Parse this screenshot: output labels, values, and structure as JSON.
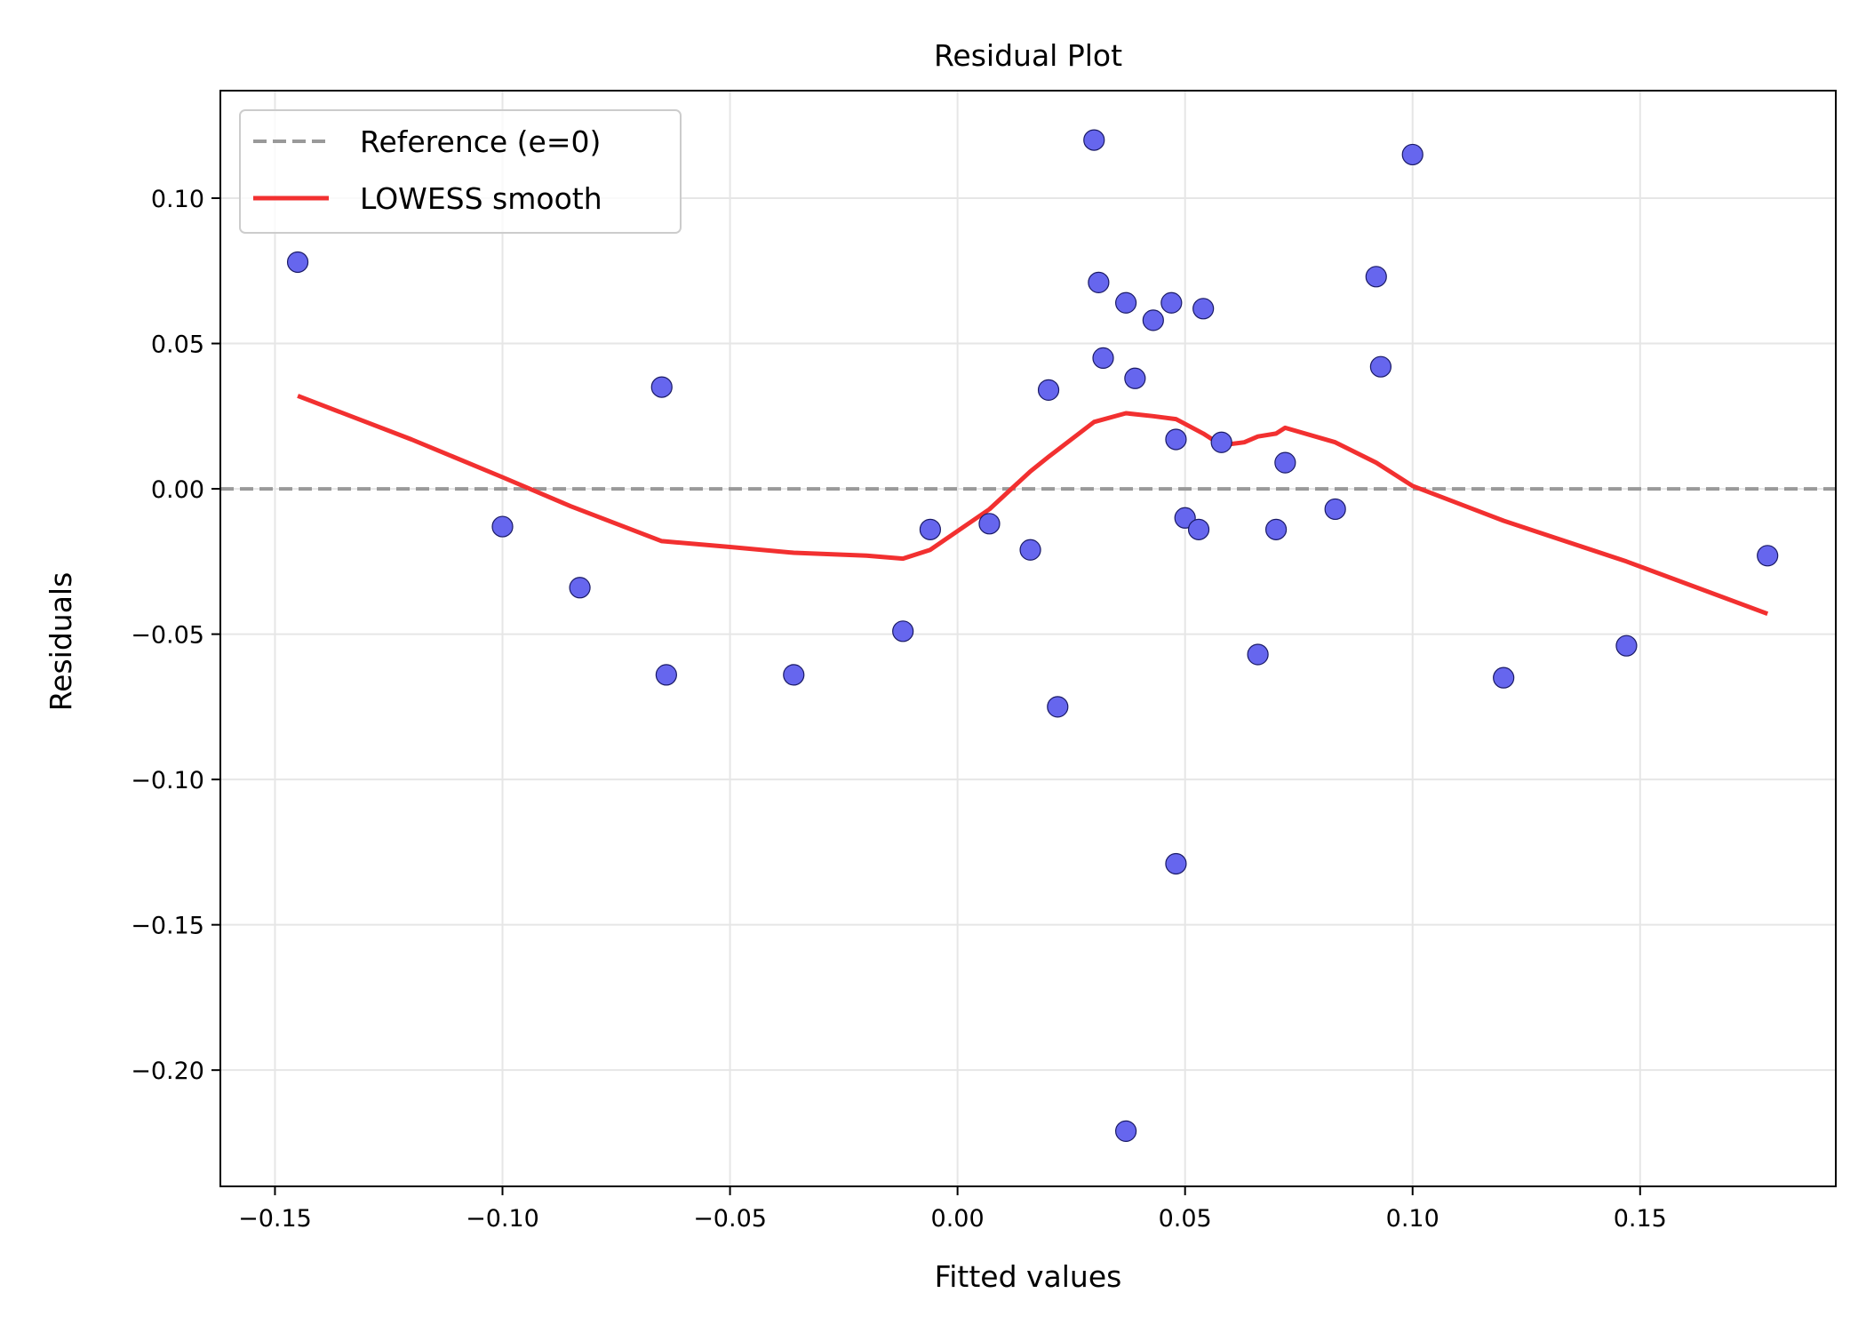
{
  "chart_data": {
    "type": "scatter",
    "title": "Residual Plot",
    "xlabel": "Fitted values",
    "ylabel": "Residuals",
    "xlim": [
      -0.162,
      0.193
    ],
    "ylim": [
      -0.24,
      0.137
    ],
    "xticks": [
      -0.15,
      -0.1,
      -0.05,
      0.0,
      0.05,
      0.1,
      0.15
    ],
    "xtick_labels": [
      "−0.15",
      "−0.10",
      "−0.05",
      "0.00",
      "0.05",
      "0.10",
      "0.15"
    ],
    "yticks": [
      0.1,
      0.05,
      0.0,
      -0.05,
      -0.1,
      -0.15,
      -0.2
    ],
    "ytick_labels": [
      "0.10",
      "0.05",
      "0.00",
      "−0.05",
      "−0.10",
      "−0.15",
      "−0.20"
    ],
    "grid": true,
    "legend_position": "top-left",
    "colors": {
      "points": "#6666ee",
      "point_edge": "#1a1a66",
      "lowess": "#f23030",
      "reference": "#999999"
    },
    "series": [
      {
        "name": "Residuals",
        "kind": "scatter",
        "points": [
          [
            -0.145,
            0.078
          ],
          [
            -0.1,
            -0.013
          ],
          [
            -0.083,
            -0.034
          ],
          [
            -0.065,
            0.035
          ],
          [
            -0.064,
            -0.064
          ],
          [
            -0.036,
            -0.064
          ],
          [
            -0.012,
            -0.049
          ],
          [
            -0.006,
            -0.014
          ],
          [
            0.007,
            -0.012
          ],
          [
            0.016,
            -0.021
          ],
          [
            0.02,
            0.034
          ],
          [
            0.022,
            -0.075
          ],
          [
            0.03,
            0.12
          ],
          [
            0.031,
            0.071
          ],
          [
            0.032,
            0.045
          ],
          [
            0.037,
            0.064
          ],
          [
            0.037,
            -0.221
          ],
          [
            0.039,
            0.038
          ],
          [
            0.043,
            0.058
          ],
          [
            0.047,
            0.064
          ],
          [
            0.048,
            0.017
          ],
          [
            0.048,
            -0.129
          ],
          [
            0.05,
            -0.01
          ],
          [
            0.053,
            -0.014
          ],
          [
            0.054,
            0.062
          ],
          [
            0.058,
            0.016
          ],
          [
            0.066,
            -0.057
          ],
          [
            0.07,
            -0.014
          ],
          [
            0.072,
            0.009
          ],
          [
            0.083,
            -0.007
          ],
          [
            0.092,
            0.073
          ],
          [
            0.093,
            0.042
          ],
          [
            0.1,
            0.115
          ],
          [
            0.12,
            -0.065
          ],
          [
            0.147,
            -0.054
          ],
          [
            0.178,
            -0.023
          ]
        ]
      },
      {
        "name": "LOWESS smooth",
        "kind": "line",
        "points": [
          [
            -0.145,
            0.032
          ],
          [
            -0.12,
            0.017
          ],
          [
            -0.1,
            0.004
          ],
          [
            -0.085,
            -0.006
          ],
          [
            -0.065,
            -0.018
          ],
          [
            -0.05,
            -0.02
          ],
          [
            -0.036,
            -0.022
          ],
          [
            -0.02,
            -0.023
          ],
          [
            -0.012,
            -0.024
          ],
          [
            -0.006,
            -0.021
          ],
          [
            0.007,
            -0.007
          ],
          [
            0.016,
            0.006
          ],
          [
            0.02,
            0.011
          ],
          [
            0.03,
            0.023
          ],
          [
            0.037,
            0.026
          ],
          [
            0.043,
            0.025
          ],
          [
            0.048,
            0.024
          ],
          [
            0.054,
            0.019
          ],
          [
            0.058,
            0.015
          ],
          [
            0.063,
            0.016
          ],
          [
            0.066,
            0.018
          ],
          [
            0.07,
            0.019
          ],
          [
            0.072,
            0.021
          ],
          [
            0.083,
            0.016
          ],
          [
            0.092,
            0.009
          ],
          [
            0.1,
            0.001
          ],
          [
            0.12,
            -0.011
          ],
          [
            0.147,
            -0.025
          ],
          [
            0.178,
            -0.043
          ]
        ]
      },
      {
        "name": "Reference (e=0)",
        "kind": "hline",
        "y": 0
      }
    ],
    "legend_entries": [
      "Reference (e=0)",
      "LOWESS smooth"
    ]
  }
}
